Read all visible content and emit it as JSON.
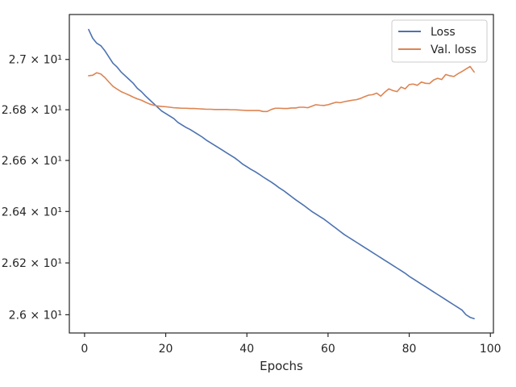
{
  "chart_data": {
    "type": "line",
    "title": "",
    "xlabel": "Epochs",
    "ylabel": "",
    "xlim": [
      -3.75,
      100.75
    ],
    "ylim": [
      25.93,
      27.18
    ],
    "y_scale": "log",
    "grid": false,
    "legend_position": "top-right",
    "x_ticks": [
      0,
      20,
      40,
      60,
      80,
      100
    ],
    "x_tick_labels": [
      "0",
      "20",
      "40",
      "60",
      "80",
      "100"
    ],
    "y_ticks": [
      26.0,
      26.2,
      26.4,
      26.6,
      26.8,
      27.0
    ],
    "y_tick_labels": [
      "2.6 × 10¹",
      "2.62 × 10¹",
      "2.64 × 10¹",
      "2.66 × 10¹",
      "2.68 × 10¹",
      "2.7 × 10¹"
    ],
    "series": [
      {
        "name": "Loss",
        "color": "#4c72b0",
        "x": [
          1,
          2,
          3,
          4,
          5,
          6,
          7,
          8,
          9,
          10,
          11,
          12,
          13,
          14,
          15,
          16,
          17,
          18,
          19,
          20,
          21,
          22,
          23,
          24,
          25,
          26,
          27,
          28,
          29,
          30,
          31,
          32,
          33,
          34,
          35,
          36,
          37,
          38,
          39,
          40,
          41,
          42,
          43,
          44,
          45,
          46,
          47,
          48,
          49,
          50,
          51,
          52,
          53,
          54,
          55,
          56,
          57,
          58,
          59,
          60,
          61,
          62,
          63,
          64,
          65,
          66,
          67,
          68,
          69,
          70,
          71,
          72,
          73,
          74,
          75,
          76,
          77,
          78,
          79,
          80,
          81,
          82,
          83,
          84,
          85,
          86,
          87,
          88,
          89,
          90,
          91,
          92,
          93,
          94,
          95,
          96
        ],
        "values": [
          27.12,
          27.085,
          27.065,
          27.055,
          27.035,
          27.01,
          26.985,
          26.97,
          26.95,
          26.935,
          26.92,
          26.905,
          26.885,
          26.872,
          26.855,
          26.84,
          26.825,
          26.81,
          26.795,
          26.785,
          26.775,
          26.765,
          26.75,
          26.74,
          26.73,
          26.722,
          26.712,
          26.702,
          26.692,
          26.68,
          26.67,
          26.66,
          26.65,
          26.64,
          26.63,
          26.62,
          26.61,
          26.598,
          26.585,
          26.575,
          26.565,
          26.556,
          26.546,
          26.535,
          26.525,
          26.515,
          26.504,
          26.492,
          26.482,
          26.47,
          26.458,
          26.446,
          26.435,
          26.424,
          26.412,
          26.4,
          26.39,
          26.38,
          26.37,
          26.358,
          26.346,
          26.334,
          26.322,
          26.31,
          26.3,
          26.29,
          26.28,
          26.27,
          26.26,
          26.25,
          26.24,
          26.23,
          26.22,
          26.21,
          26.2,
          26.19,
          26.18,
          26.17,
          26.16,
          26.148,
          26.138,
          26.128,
          26.118,
          26.108,
          26.098,
          26.088,
          26.078,
          26.068,
          26.058,
          26.048,
          26.038,
          26.028,
          26.018,
          26.0,
          25.99,
          25.985
        ]
      },
      {
        "name": "Val. loss",
        "color": "#dd8452",
        "x": [
          1,
          2,
          3,
          4,
          5,
          6,
          7,
          8,
          9,
          10,
          11,
          12,
          13,
          14,
          15,
          16,
          17,
          18,
          19,
          20,
          21,
          22,
          23,
          24,
          25,
          26,
          27,
          28,
          29,
          30,
          31,
          32,
          33,
          34,
          35,
          36,
          37,
          38,
          39,
          40,
          41,
          42,
          43,
          44,
          45,
          46,
          47,
          48,
          49,
          50,
          51,
          52,
          53,
          54,
          55,
          56,
          57,
          58,
          59,
          60,
          61,
          62,
          63,
          64,
          65,
          66,
          67,
          68,
          69,
          70,
          71,
          72,
          73,
          74,
          75,
          76,
          77,
          78,
          79,
          80,
          81,
          82,
          83,
          84,
          85,
          86,
          87,
          88,
          89,
          90,
          91,
          92,
          93,
          94,
          95,
          96
        ],
        "values": [
          26.935,
          26.937,
          26.947,
          26.942,
          26.928,
          26.91,
          26.893,
          26.882,
          26.872,
          26.865,
          26.858,
          26.85,
          26.843,
          26.838,
          26.83,
          26.823,
          26.818,
          26.815,
          26.813,
          26.812,
          26.81,
          26.808,
          26.807,
          26.806,
          26.806,
          26.805,
          26.805,
          26.804,
          26.803,
          26.802,
          26.802,
          26.801,
          26.801,
          26.801,
          26.801,
          26.8,
          26.8,
          26.799,
          26.798,
          26.797,
          26.797,
          26.797,
          26.797,
          26.793,
          26.793,
          26.801,
          26.806,
          26.806,
          26.805,
          26.805,
          26.807,
          26.807,
          26.81,
          26.81,
          26.808,
          26.814,
          26.82,
          26.818,
          26.817,
          26.82,
          26.825,
          26.83,
          26.828,
          26.832,
          26.835,
          26.838,
          26.84,
          26.845,
          26.852,
          26.858,
          26.86,
          26.866,
          26.854,
          26.87,
          26.883,
          26.876,
          26.872,
          26.89,
          26.883,
          26.9,
          26.902,
          26.897,
          26.91,
          26.905,
          26.904,
          26.918,
          26.925,
          26.92,
          26.94,
          26.935,
          26.932,
          26.943,
          26.952,
          26.962,
          26.972,
          26.95
        ]
      }
    ]
  }
}
